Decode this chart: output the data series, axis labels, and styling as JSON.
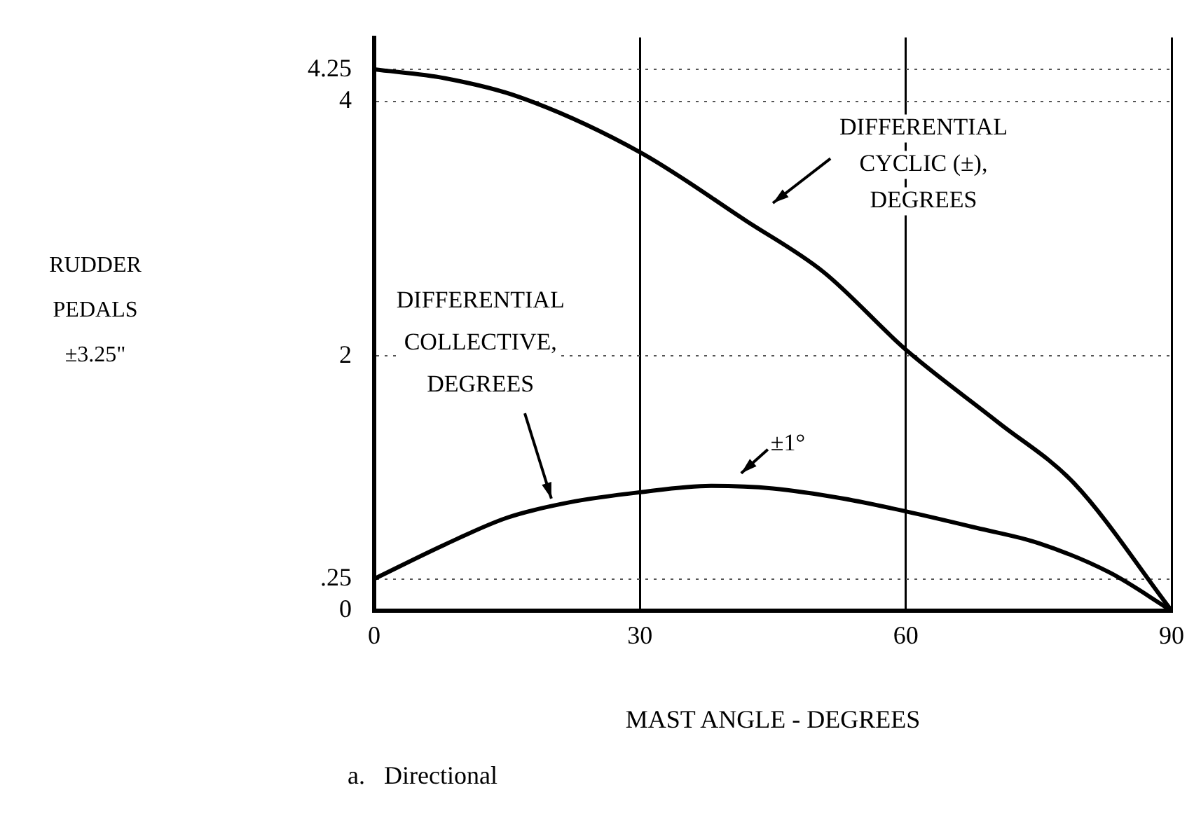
{
  "chart_data": {
    "type": "line",
    "xlabel": "MAST ANGLE - DEGREES",
    "series": [
      {
        "name": "DIFFERENTIAL CYCLIC (±), DEGREES",
        "color": "#000000",
        "x": [
          0,
          8,
          16.5,
          30,
          42,
          50.7,
          60,
          70.4,
          79,
          90
        ],
        "values": [
          4.25,
          4.18,
          4.03,
          3.6,
          3.06,
          2.66,
          2.05,
          1.48,
          1.0,
          0
        ]
      },
      {
        "name": "DIFFERENTIAL COLLECTIVE, DEGREES",
        "color": "#000000",
        "x": [
          0,
          8,
          15,
          22,
          30,
          38,
          45,
          53,
          60,
          68,
          75,
          83,
          90
        ],
        "values": [
          0.25,
          0.52,
          0.73,
          0.85,
          0.93,
          0.98,
          0.96,
          0.88,
          0.78,
          0.65,
          0.53,
          0.3,
          0
        ]
      }
    ],
    "xlim": [
      0,
      90
    ],
    "xticks": [
      0,
      30,
      60,
      90
    ],
    "ylim": [
      0,
      4.5
    ],
    "yticks": [
      0,
      {
        "value": 0.25,
        "label": ".25"
      },
      2,
      4,
      {
        "value": 4.25,
        "label": "4.25"
      }
    ],
    "grid": true,
    "legend": false,
    "marker": "none",
    "line_style": "solid",
    "annotations": [
      {
        "text": "±1°",
        "x": 40,
        "y": 0.98
      },
      "RUDDER PEDALS ±3.25\"",
      "a.   Directional"
    ]
  }
}
